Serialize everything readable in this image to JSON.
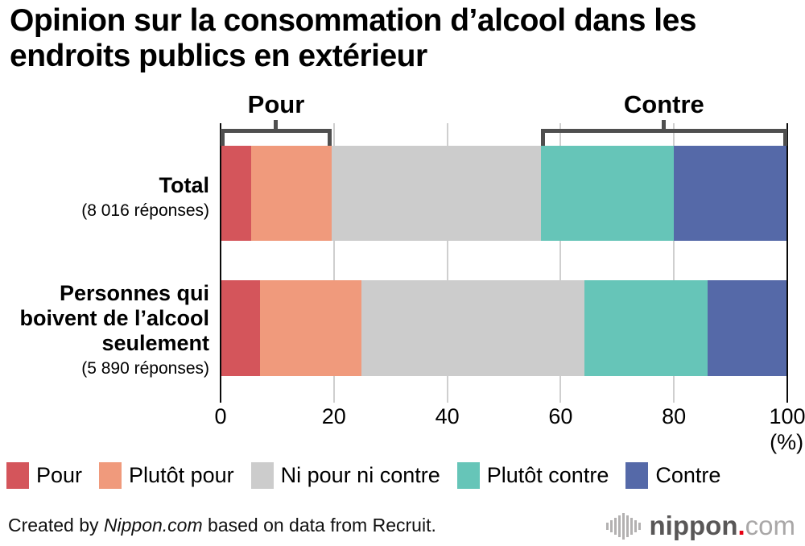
{
  "title_lines": [
    "Opinion sur la consommation d’alcool dans les",
    "endroits publics en extérieur"
  ],
  "group_labels": {
    "pour": "Pour",
    "contre": "Contre"
  },
  "rows": [
    {
      "label_lines": [
        "Total"
      ],
      "responses": "(8 016 réponses)"
    },
    {
      "label_lines": [
        "Personnes qui",
        "boivent de l’alcool",
        "seulement"
      ],
      "responses": "(5 890 réponses)"
    }
  ],
  "axis": {
    "ticks": [
      "0",
      "20",
      "40",
      "60",
      "80",
      "100"
    ],
    "unit": "(%)"
  },
  "legend": [
    {
      "label": "Pour",
      "color": "#d4555b"
    },
    {
      "label": "Plutôt pour",
      "color": "#f09a7c"
    },
    {
      "label": "Ni pour ni contre",
      "color": "#cccccc"
    },
    {
      "label": "Plutôt contre",
      "color": "#66c5b8"
    },
    {
      "label": "Contre",
      "color": "#5569a8"
    }
  ],
  "footer": {
    "prefix": "Created by ",
    "brand": "Nippon.com",
    "suffix": " based on data from Recruit."
  },
  "logo": {
    "name": "nippon",
    "dot": ".",
    "tld": "com"
  },
  "chart_data": {
    "type": "bar",
    "orientation": "horizontal_stacked",
    "title": "Opinion sur la consommation d’alcool dans les endroits publics en extérieur",
    "categories": [
      "Total (8 016 réponses)",
      "Personnes qui boivent de l’alcool seulement (5 890 réponses)"
    ],
    "series": [
      {
        "name": "Pour",
        "values": [
          5.4,
          7.0
        ]
      },
      {
        "name": "Plutôt pour",
        "values": [
          14.2,
          17.9
        ]
      },
      {
        "name": "Ni pour ni contre",
        "values": [
          36.9,
          39.3
        ]
      },
      {
        "name": "Plutôt contre",
        "values": [
          23.5,
          21.8
        ]
      },
      {
        "name": "Contre",
        "values": [
          20.0,
          14.0
        ]
      }
    ],
    "xlim": [
      0,
      100
    ],
    "xticks": [
      0,
      20,
      40,
      60,
      80,
      100
    ],
    "unit": "%",
    "grid": "vertical",
    "group_brackets": [
      {
        "label": "Pour",
        "from": 0,
        "to": 19.6
      },
      {
        "label": "Contre",
        "from": 56.5,
        "to": 100
      }
    ],
    "legend_position": "bottom",
    "source": "Created by Nippon.com based on data from Recruit."
  }
}
